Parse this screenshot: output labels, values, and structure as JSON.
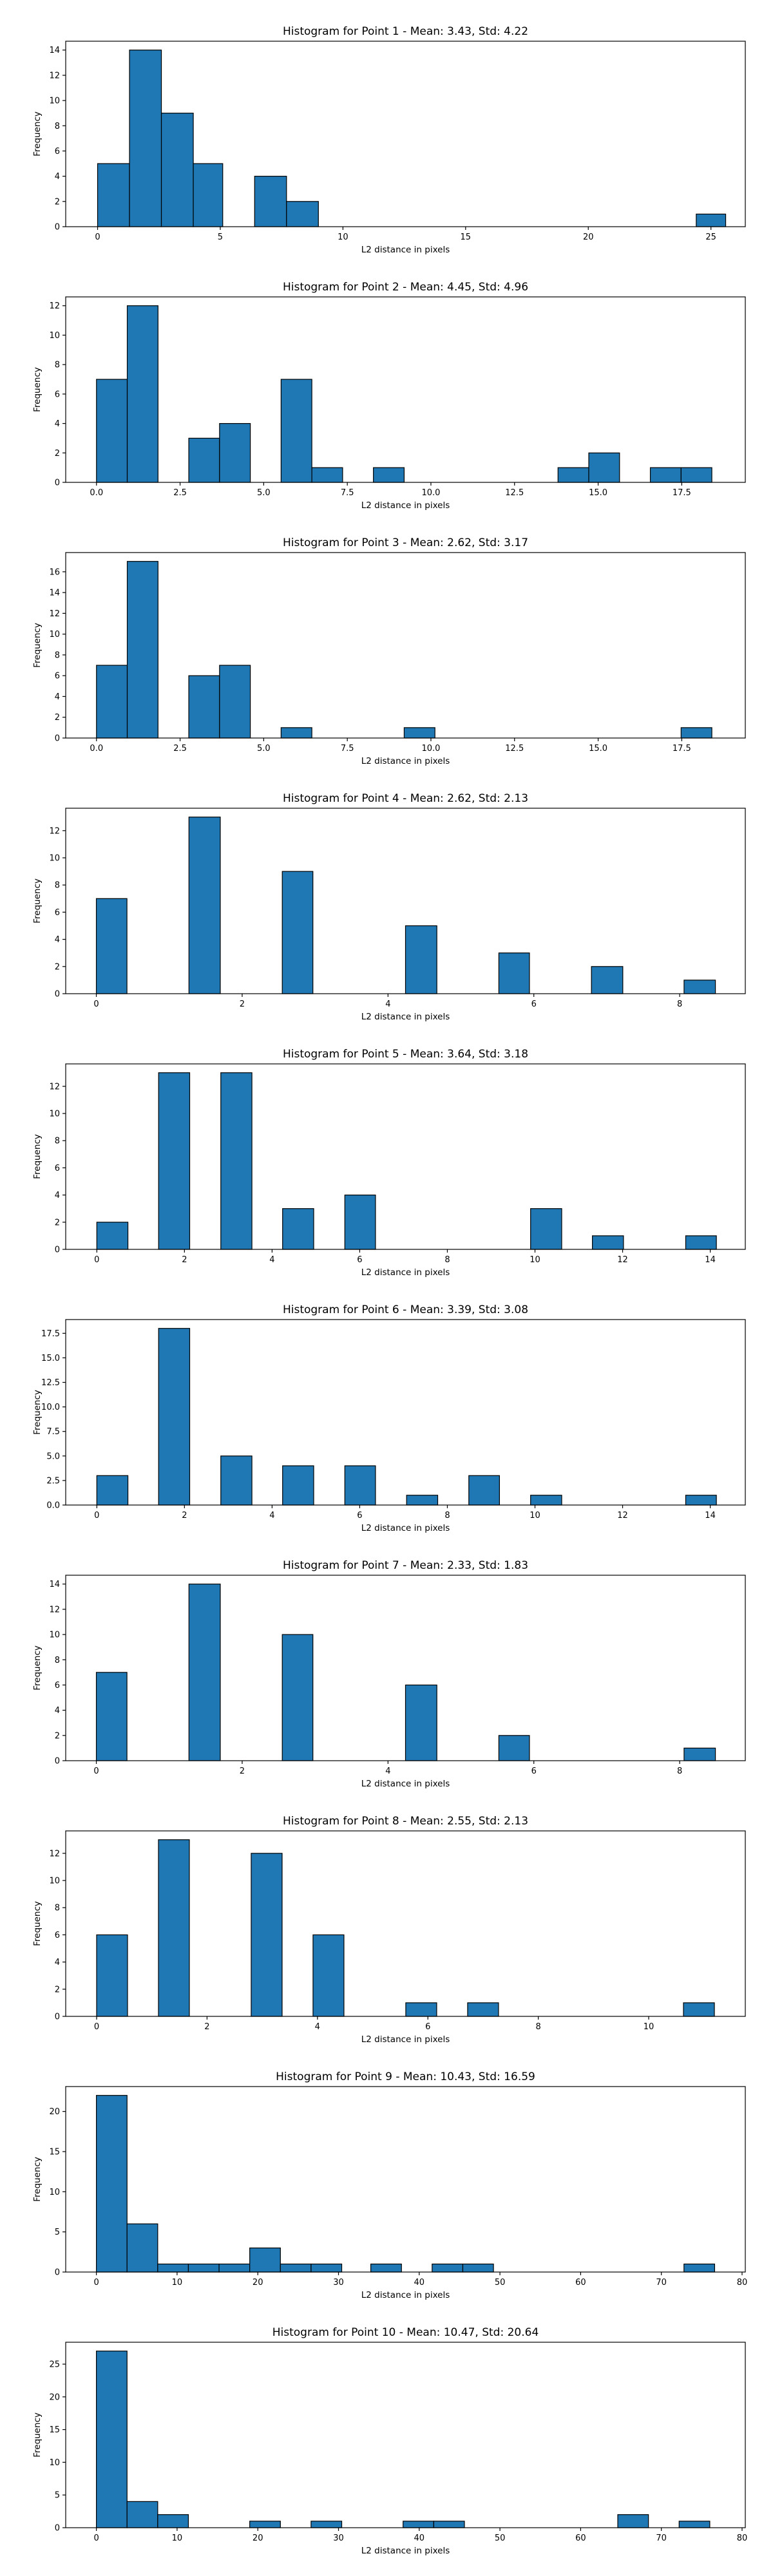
{
  "chart_data": [
    {
      "type": "bar",
      "title": "Histogram for Point 1 - Mean: 3.43, Std: 4.22",
      "xlabel": "L2 distance in pixels",
      "ylabel": "Frequency",
      "xlim": [
        -1.3,
        26.4
      ],
      "ylim": [
        0,
        14.7
      ],
      "xticks": [
        0,
        5,
        10,
        15,
        20,
        25
      ],
      "yticks": [
        0,
        2,
        4,
        6,
        8,
        10,
        12,
        14
      ],
      "bins": [
        {
          "x0": 0.0,
          "x1": 1.3,
          "count": 5
        },
        {
          "x0": 1.3,
          "x1": 2.6,
          "count": 14
        },
        {
          "x0": 2.6,
          "x1": 3.9,
          "count": 9
        },
        {
          "x0": 3.9,
          "x1": 5.1,
          "count": 5
        },
        {
          "x0": 6.4,
          "x1": 7.7,
          "count": 4
        },
        {
          "x0": 7.7,
          "x1": 9.0,
          "count": 2
        },
        {
          "x0": 24.4,
          "x1": 25.6,
          "count": 1
        }
      ]
    },
    {
      "type": "bar",
      "title": "Histogram for Point 2 - Mean: 4.45, Std: 4.96",
      "xlabel": "L2 distance in pixels",
      "ylabel": "Frequency",
      "xlim": [
        -0.92,
        19.4
      ],
      "ylim": [
        0,
        12.6
      ],
      "xticks": [
        0.0,
        2.5,
        5.0,
        7.5,
        10.0,
        12.5,
        15.0,
        17.5
      ],
      "xtick_labels": [
        "0.0",
        "2.5",
        "5.0",
        "7.5",
        "10.0",
        "12.5",
        "15.0",
        "17.5"
      ],
      "yticks": [
        0,
        2,
        4,
        6,
        8,
        10,
        12
      ],
      "bins": [
        {
          "x0": 0.0,
          "x1": 0.92,
          "count": 7
        },
        {
          "x0": 0.92,
          "x1": 1.84,
          "count": 12
        },
        {
          "x0": 2.76,
          "x1": 3.68,
          "count": 3
        },
        {
          "x0": 3.68,
          "x1": 4.6,
          "count": 4
        },
        {
          "x0": 5.52,
          "x1": 6.44,
          "count": 7
        },
        {
          "x0": 6.44,
          "x1": 7.36,
          "count": 1
        },
        {
          "x0": 8.28,
          "x1": 9.2,
          "count": 1
        },
        {
          "x0": 13.8,
          "x1": 14.72,
          "count": 1
        },
        {
          "x0": 14.72,
          "x1": 15.64,
          "count": 2
        },
        {
          "x0": 16.56,
          "x1": 17.48,
          "count": 1
        },
        {
          "x0": 17.48,
          "x1": 18.4,
          "count": 1
        }
      ]
    },
    {
      "type": "bar",
      "title": "Histogram for Point 3 - Mean: 2.62, Std: 3.17",
      "xlabel": "L2 distance in pixels",
      "ylabel": "Frequency",
      "xlim": [
        -0.92,
        19.4
      ],
      "ylim": [
        0,
        17.85
      ],
      "xticks": [
        0.0,
        2.5,
        5.0,
        7.5,
        10.0,
        12.5,
        15.0,
        17.5
      ],
      "xtick_labels": [
        "0.0",
        "2.5",
        "5.0",
        "7.5",
        "10.0",
        "12.5",
        "15.0",
        "17.5"
      ],
      "yticks": [
        0,
        2,
        4,
        6,
        8,
        10,
        12,
        14,
        16
      ],
      "bins": [
        {
          "x0": 0.0,
          "x1": 0.92,
          "count": 7
        },
        {
          "x0": 0.92,
          "x1": 1.84,
          "count": 17
        },
        {
          "x0": 2.76,
          "x1": 3.68,
          "count": 6
        },
        {
          "x0": 3.68,
          "x1": 4.6,
          "count": 7
        },
        {
          "x0": 5.52,
          "x1": 6.44,
          "count": 1
        },
        {
          "x0": 9.2,
          "x1": 10.12,
          "count": 1
        },
        {
          "x0": 17.48,
          "x1": 18.4,
          "count": 1
        }
      ]
    },
    {
      "type": "bar",
      "title": "Histogram for Point 4 - Mean: 2.62, Std: 2.13",
      "xlabel": "L2 distance in pixels",
      "ylabel": "Frequency",
      "xlim": [
        -0.42,
        8.9
      ],
      "ylim": [
        0,
        13.65
      ],
      "xticks": [
        0,
        2,
        4,
        6,
        8
      ],
      "yticks": [
        0,
        2,
        4,
        6,
        8,
        10,
        12
      ],
      "bins": [
        {
          "x0": 0.0,
          "x1": 0.42,
          "count": 7
        },
        {
          "x0": 1.27,
          "x1": 1.7,
          "count": 13
        },
        {
          "x0": 2.55,
          "x1": 2.97,
          "count": 9
        },
        {
          "x0": 4.24,
          "x1": 4.67,
          "count": 5
        },
        {
          "x0": 5.52,
          "x1": 5.94,
          "count": 3
        },
        {
          "x0": 6.79,
          "x1": 7.22,
          "count": 2
        },
        {
          "x0": 8.06,
          "x1": 8.49,
          "count": 1
        }
      ]
    },
    {
      "type": "bar",
      "title": "Histogram for Point 5 - Mean: 3.64, Std: 3.18",
      "xlabel": "L2 distance in pixels",
      "ylabel": "Frequency",
      "xlim": [
        -0.71,
        14.8
      ],
      "ylim": [
        0,
        13.65
      ],
      "xticks": [
        0,
        2,
        4,
        6,
        8,
        10,
        12,
        14
      ],
      "yticks": [
        0,
        2,
        4,
        6,
        8,
        10,
        12
      ],
      "bins": [
        {
          "x0": 0.0,
          "x1": 0.71,
          "count": 2
        },
        {
          "x0": 1.41,
          "x1": 2.12,
          "count": 13
        },
        {
          "x0": 2.83,
          "x1": 3.54,
          "count": 13
        },
        {
          "x0": 4.24,
          "x1": 4.95,
          "count": 3
        },
        {
          "x0": 5.66,
          "x1": 6.36,
          "count": 4
        },
        {
          "x0": 9.9,
          "x1": 10.61,
          "count": 3
        },
        {
          "x0": 11.31,
          "x1": 12.02,
          "count": 1
        },
        {
          "x0": 13.44,
          "x1": 14.14,
          "count": 1
        }
      ]
    },
    {
      "type": "bar",
      "title": "Histogram for Point 6 - Mean: 3.39, Std: 3.08",
      "xlabel": "L2 distance in pixels",
      "ylabel": "Frequency",
      "xlim": [
        -0.71,
        14.8
      ],
      "ylim": [
        0,
        18.9
      ],
      "xticks": [
        0,
        2,
        4,
        6,
        8,
        10,
        12,
        14
      ],
      "yticks": [
        0,
        2.5,
        5.0,
        7.5,
        10.0,
        12.5,
        15.0,
        17.5
      ],
      "ytick_labels": [
        "0.0",
        "2.5",
        "5.0",
        "7.5",
        "10.0",
        "12.5",
        "15.0",
        "17.5"
      ],
      "bins": [
        {
          "x0": 0.0,
          "x1": 0.71,
          "count": 3
        },
        {
          "x0": 1.41,
          "x1": 2.12,
          "count": 18
        },
        {
          "x0": 2.83,
          "x1": 3.54,
          "count": 5
        },
        {
          "x0": 4.24,
          "x1": 4.95,
          "count": 4
        },
        {
          "x0": 5.66,
          "x1": 6.36,
          "count": 4
        },
        {
          "x0": 7.07,
          "x1": 7.78,
          "count": 1
        },
        {
          "x0": 8.49,
          "x1": 9.19,
          "count": 3
        },
        {
          "x0": 9.9,
          "x1": 10.61,
          "count": 1
        },
        {
          "x0": 13.44,
          "x1": 14.14,
          "count": 1
        }
      ]
    },
    {
      "type": "bar",
      "title": "Histogram for Point 7 - Mean: 2.33, Std: 1.83",
      "xlabel": "L2 distance in pixels",
      "ylabel": "Frequency",
      "xlim": [
        -0.42,
        8.9
      ],
      "ylim": [
        0,
        14.7
      ],
      "xticks": [
        0,
        2,
        4,
        6,
        8
      ],
      "yticks": [
        0,
        2,
        4,
        6,
        8,
        10,
        12,
        14
      ],
      "bins": [
        {
          "x0": 0.0,
          "x1": 0.42,
          "count": 7
        },
        {
          "x0": 1.27,
          "x1": 1.7,
          "count": 14
        },
        {
          "x0": 2.55,
          "x1": 2.97,
          "count": 10
        },
        {
          "x0": 4.24,
          "x1": 4.67,
          "count": 6
        },
        {
          "x0": 5.52,
          "x1": 5.94,
          "count": 2
        },
        {
          "x0": 8.06,
          "x1": 8.49,
          "count": 1
        }
      ]
    },
    {
      "type": "bar",
      "title": "Histogram for Point 8 - Mean: 2.55, Std: 2.13",
      "xlabel": "L2 distance in pixels",
      "ylabel": "Frequency",
      "xlim": [
        -0.56,
        11.75
      ],
      "ylim": [
        0,
        13.65
      ],
      "xticks": [
        0,
        2,
        4,
        6,
        8,
        10
      ],
      "yticks": [
        0,
        2,
        4,
        6,
        8,
        10,
        12
      ],
      "bins": [
        {
          "x0": 0.0,
          "x1": 0.56,
          "count": 6
        },
        {
          "x0": 1.12,
          "x1": 1.68,
          "count": 13
        },
        {
          "x0": 2.8,
          "x1": 3.36,
          "count": 12
        },
        {
          "x0": 3.92,
          "x1": 4.48,
          "count": 6
        },
        {
          "x0": 5.6,
          "x1": 6.16,
          "count": 1
        },
        {
          "x0": 6.72,
          "x1": 7.28,
          "count": 1
        },
        {
          "x0": 10.63,
          "x1": 11.19,
          "count": 1
        }
      ]
    },
    {
      "type": "bar",
      "title": "Histogram for Point 9 - Mean: 10.43, Std: 16.59",
      "xlabel": "L2 distance in pixels",
      "ylabel": "Frequency",
      "xlim": [
        -3.8,
        80.4
      ],
      "ylim": [
        0,
        23.1
      ],
      "xticks": [
        0,
        10,
        20,
        30,
        40,
        50,
        60,
        70,
        80
      ],
      "yticks": [
        0,
        5,
        10,
        15,
        20
      ],
      "bins": [
        {
          "x0": 0.0,
          "x1": 3.8,
          "count": 22
        },
        {
          "x0": 3.8,
          "x1": 7.6,
          "count": 6
        },
        {
          "x0": 7.6,
          "x1": 11.4,
          "count": 1
        },
        {
          "x0": 11.4,
          "x1": 15.2,
          "count": 1
        },
        {
          "x0": 15.2,
          "x1": 19.0,
          "count": 1
        },
        {
          "x0": 19.0,
          "x1": 22.8,
          "count": 3
        },
        {
          "x0": 22.8,
          "x1": 26.6,
          "count": 1
        },
        {
          "x0": 26.6,
          "x1": 30.4,
          "count": 1
        },
        {
          "x0": 34.0,
          "x1": 37.8,
          "count": 1
        },
        {
          "x0": 41.6,
          "x1": 45.4,
          "count": 1
        },
        {
          "x0": 45.4,
          "x1": 49.2,
          "count": 1
        },
        {
          "x0": 72.8,
          "x1": 76.6,
          "count": 1
        }
      ]
    },
    {
      "type": "bar",
      "title": "Histogram for Point 10 - Mean: 10.47, Std: 20.64",
      "xlabel": "L2 distance in pixels",
      "ylabel": "Frequency",
      "xlim": [
        -3.8,
        80.4
      ],
      "ylim": [
        0,
        28.35
      ],
      "xticks": [
        0,
        10,
        20,
        30,
        40,
        50,
        60,
        70,
        80
      ],
      "yticks": [
        0,
        5,
        10,
        15,
        20,
        25
      ],
      "bins": [
        {
          "x0": 0.0,
          "x1": 3.8,
          "count": 27
        },
        {
          "x0": 3.8,
          "x1": 7.6,
          "count": 4
        },
        {
          "x0": 7.6,
          "x1": 11.4,
          "count": 2
        },
        {
          "x0": 19.0,
          "x1": 22.8,
          "count": 1
        },
        {
          "x0": 26.6,
          "x1": 30.4,
          "count": 1
        },
        {
          "x0": 38.0,
          "x1": 41.8,
          "count": 1
        },
        {
          "x0": 41.8,
          "x1": 45.6,
          "count": 1
        },
        {
          "x0": 64.6,
          "x1": 68.4,
          "count": 2
        },
        {
          "x0": 72.2,
          "x1": 76.0,
          "count": 1
        }
      ]
    }
  ]
}
